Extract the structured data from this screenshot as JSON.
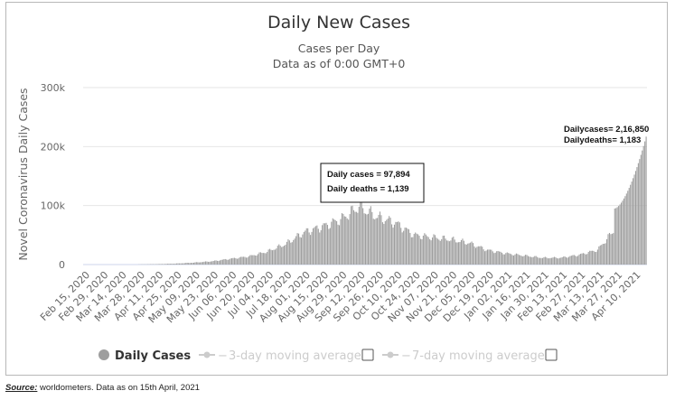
{
  "chart_data": {
    "type": "bar",
    "title": "Daily New Cases",
    "subtitle_line1": "Cases per Day",
    "subtitle_line2": "Data as of 0:00 GMT+0",
    "ylabel": "Novel Coronavirus Daily Cases",
    "ylim": [
      0,
      300000
    ],
    "y_ticks": [
      "0",
      "100k",
      "200k",
      "300k"
    ],
    "y_tick_values": [
      0,
      100000,
      200000,
      300000
    ],
    "x_tick_labels": [
      "Feb 15, 2020",
      "Feb 29, 2020",
      "Mar 14, 2020",
      "Mar 28, 2020",
      "Apr 11, 2020",
      "Apr 25, 2020",
      "May 09, 2020",
      "May 23, 2020",
      "Jun 06, 2020",
      "Jun 20, 2020",
      "Jul 04, 2020",
      "Jul 18, 2020",
      "Aug 01, 2020",
      "Aug 15, 2020",
      "Aug 29, 2020",
      "Sep 12, 2020",
      "Sep 26, 2020",
      "Oct 10, 2020",
      "Oct 24, 2020",
      "Nov 07, 2020",
      "Nov 21, 2020",
      "Dec 05, 2020",
      "Dec 19, 2020",
      "Jan 02, 2021",
      "Jan 16, 2021",
      "Jan 30, 2021",
      "Feb 13, 2021",
      "Feb 27, 2021",
      "Mar 13, 2021",
      "Mar 27, 2021",
      "Apr 10, 2021"
    ],
    "series": [
      {
        "name": "Daily Cases",
        "color": "#9e9e9e",
        "approx_tick_values": [
          0,
          0,
          5,
          200,
          700,
          1600,
          3300,
          5600,
          9800,
          13800,
          22000,
          34800,
          54700,
          64300,
          76500,
          97894,
          81000,
          70500,
          50100,
          46200,
          42500,
          36600,
          24500,
          19000,
          15200,
          11500,
          11600,
          16500,
          25000,
          62000,
          153000
        ],
        "last_value": 216850
      }
    ],
    "annotations": [
      {
        "line1": "Daily cases = 97,894",
        "line2": "Daily deaths = 1,139",
        "value": 97894
      },
      {
        "line1": "Dailycases= 2,16,850",
        "line2": "Dailydeaths= 1,183",
        "value": 216850
      }
    ],
    "legend": [
      {
        "label": "Daily Cases",
        "active": true
      },
      {
        "label": "3-day moving average",
        "active": false
      },
      {
        "label": "7-day moving average",
        "active": false
      }
    ]
  },
  "source_label": "Source:",
  "source_text": " worldometers. Data as on 15th April, 2021",
  "colors": {
    "bar": "#9e9e9e",
    "grid": "#e6e6e6",
    "legend_inactive": "#cccccc"
  }
}
